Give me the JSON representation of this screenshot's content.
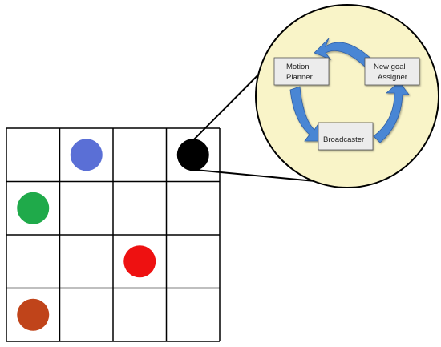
{
  "grid": {
    "rows": 4,
    "cols": 4,
    "line_color": "#000000",
    "agents": [
      {
        "name": "blue-agent",
        "row": 0,
        "col": 1,
        "color": "#5a6fd6"
      },
      {
        "name": "black-agent",
        "row": 0,
        "col": 3,
        "color": "#000000"
      },
      {
        "name": "green-agent",
        "row": 1,
        "col": 0,
        "color": "#1faa4a"
      },
      {
        "name": "red-agent",
        "row": 2,
        "col": 2,
        "color": "#ee1111"
      },
      {
        "name": "brown-agent",
        "row": 3,
        "col": 0,
        "color": "#c0441a"
      }
    ]
  },
  "zoom_callout": {
    "fill_color": "#f9f4c8",
    "border_color": "#000000",
    "zoomed_agent": "black-agent"
  },
  "cycle": {
    "arrow_color": "#4a86d4",
    "box_fill": "#ececec",
    "nodes": [
      {
        "id": "motion",
        "label_line1": "Motion",
        "label_line2": "Planner"
      },
      {
        "id": "newgoal",
        "label_line1": "New goal",
        "label_line2": "Assigner"
      },
      {
        "id": "broadcaster",
        "label_line1": "Broadcaster",
        "label_line2": ""
      }
    ]
  }
}
